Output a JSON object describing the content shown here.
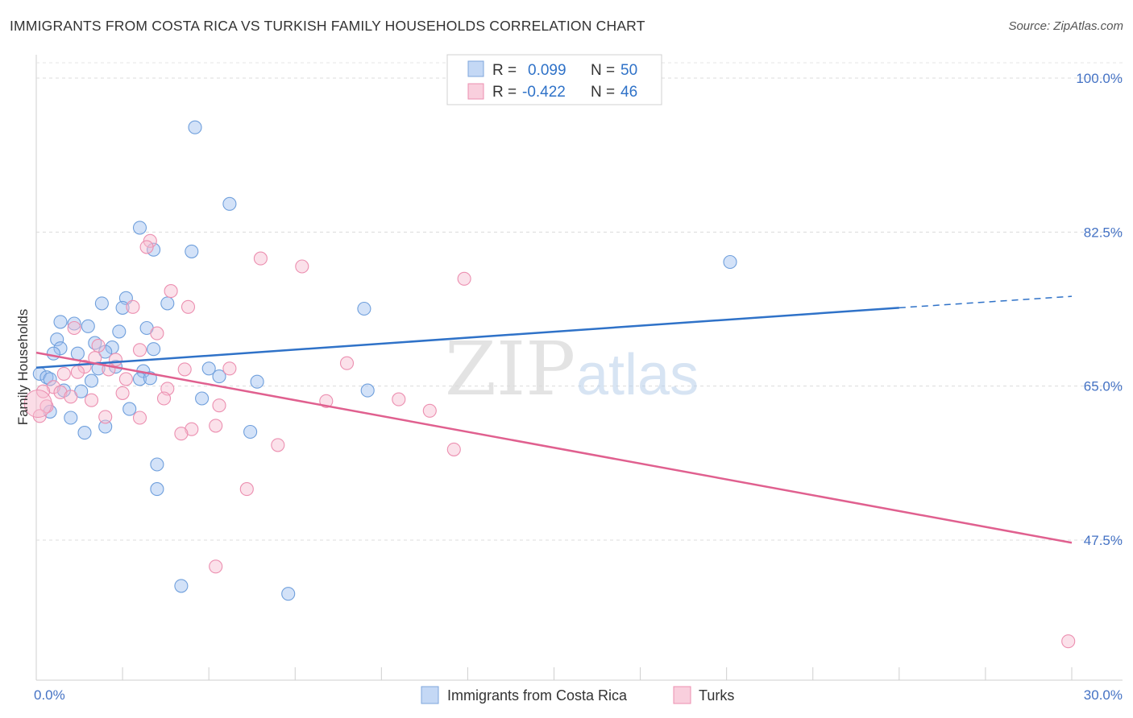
{
  "chart_data": {
    "type": "scatter",
    "title": "IMMIGRANTS FROM COSTA RICA VS TURKISH FAMILY HOUSEHOLDS CORRELATION CHART",
    "source": "Source: ZipAtlas.com",
    "xlabel": "",
    "ylabel": "Family Households",
    "xlim": [
      0,
      30
    ],
    "ylim": [
      30,
      102
    ],
    "x_tick_labels": [
      {
        "value": 0,
        "label": "0.0%"
      },
      {
        "value": 30,
        "label": "30.0%"
      }
    ],
    "y_tick_labels": [
      {
        "value": 100,
        "label": "100.0%"
      },
      {
        "value": 82.5,
        "label": "82.5%"
      },
      {
        "value": 65,
        "label": "65.0%"
      },
      {
        "value": 47.5,
        "label": "47.5%"
      }
    ],
    "watermark": {
      "zip": "ZIP",
      "atlas": "atlas"
    },
    "legend_stats": [
      {
        "r_label": "R =",
        "r_value": "0.099",
        "n_label": "N =",
        "n_value": "50"
      },
      {
        "r_label": "R =",
        "r_value": "-0.422",
        "n_label": "N =",
        "n_value": "46"
      }
    ],
    "series": [
      {
        "name": "Immigrants from Costa Rica",
        "color": "#9dbff0",
        "stroke": "#6f9fdc",
        "line_color": "#2f72c8",
        "trend": {
          "x0": 0,
          "y0": 67.1,
          "x1": 25,
          "y1": 73.9,
          "dash_x1": 30,
          "dash_y1": 75.2
        },
        "points": [
          [
            4.6,
            94.4
          ],
          [
            5.6,
            85.7
          ],
          [
            3.0,
            83.0
          ],
          [
            3.4,
            80.5
          ],
          [
            4.5,
            80.3
          ],
          [
            20.1,
            79.1
          ],
          [
            2.6,
            75.0
          ],
          [
            1.9,
            74.4
          ],
          [
            2.5,
            73.9
          ],
          [
            3.8,
            74.4
          ],
          [
            9.5,
            73.8
          ],
          [
            0.7,
            72.3
          ],
          [
            1.1,
            72.1
          ],
          [
            1.5,
            71.8
          ],
          [
            2.4,
            71.2
          ],
          [
            3.2,
            71.6
          ],
          [
            0.6,
            70.3
          ],
          [
            1.7,
            69.9
          ],
          [
            0.7,
            69.3
          ],
          [
            2.2,
            69.4
          ],
          [
            3.4,
            69.2
          ],
          [
            0.5,
            68.7
          ],
          [
            1.2,
            68.7
          ],
          [
            2.0,
            68.9
          ],
          [
            2.3,
            67.2
          ],
          [
            1.8,
            67.0
          ],
          [
            5.0,
            67.0
          ],
          [
            3.1,
            66.7
          ],
          [
            0.1,
            66.4
          ],
          [
            0.3,
            66.0
          ],
          [
            0.4,
            65.8
          ],
          [
            1.6,
            65.6
          ],
          [
            3.0,
            65.8
          ],
          [
            3.3,
            65.9
          ],
          [
            5.3,
            66.1
          ],
          [
            6.4,
            65.5
          ],
          [
            0.8,
            64.5
          ],
          [
            1.3,
            64.4
          ],
          [
            9.6,
            64.5
          ],
          [
            4.8,
            63.6
          ],
          [
            2.7,
            62.4
          ],
          [
            0.4,
            62.1
          ],
          [
            1.0,
            61.4
          ],
          [
            2.0,
            60.4
          ],
          [
            6.2,
            59.8
          ],
          [
            1.4,
            59.7
          ],
          [
            3.5,
            56.1
          ],
          [
            3.5,
            53.3
          ],
          [
            4.2,
            42.3
          ],
          [
            7.3,
            41.4
          ]
        ]
      },
      {
        "name": "Turks",
        "color": "#f7bcd0",
        "stroke": "#ec8fb0",
        "line_color": "#e0608f",
        "trend": {
          "x0": 0,
          "y0": 68.8,
          "x1": 30,
          "y1": 47.2
        },
        "points": [
          [
            3.3,
            81.5
          ],
          [
            3.2,
            80.8
          ],
          [
            6.5,
            79.5
          ],
          [
            7.7,
            78.6
          ],
          [
            12.4,
            77.2
          ],
          [
            3.9,
            75.8
          ],
          [
            2.8,
            74.0
          ],
          [
            4.4,
            74.0
          ],
          [
            1.1,
            71.6
          ],
          [
            3.5,
            71.0
          ],
          [
            1.8,
            69.6
          ],
          [
            3.0,
            69.1
          ],
          [
            1.7,
            68.2
          ],
          [
            2.3,
            68.0
          ],
          [
            9.0,
            67.6
          ],
          [
            1.4,
            67.2
          ],
          [
            2.1,
            66.9
          ],
          [
            4.3,
            66.9
          ],
          [
            5.6,
            67.0
          ],
          [
            1.2,
            66.6
          ],
          [
            0.8,
            66.4
          ],
          [
            2.6,
            65.8
          ],
          [
            0.5,
            64.9
          ],
          [
            0.2,
            64.4
          ],
          [
            3.8,
            64.7
          ],
          [
            2.5,
            64.2
          ],
          [
            0.7,
            64.3
          ],
          [
            1.0,
            63.8
          ],
          [
            1.6,
            63.4
          ],
          [
            3.7,
            63.6
          ],
          [
            8.4,
            63.3
          ],
          [
            10.5,
            63.5
          ],
          [
            0.3,
            62.7
          ],
          [
            5.3,
            62.8
          ],
          [
            11.4,
            62.2
          ],
          [
            0.1,
            61.6
          ],
          [
            2.0,
            61.5
          ],
          [
            3.0,
            61.4
          ],
          [
            4.5,
            60.1
          ],
          [
            5.2,
            60.5
          ],
          [
            4.2,
            59.6
          ],
          [
            7.0,
            58.3
          ],
          [
            12.1,
            57.8
          ],
          [
            6.1,
            53.3
          ],
          [
            5.2,
            44.5
          ],
          [
            29.9,
            36.0
          ]
        ]
      }
    ]
  }
}
